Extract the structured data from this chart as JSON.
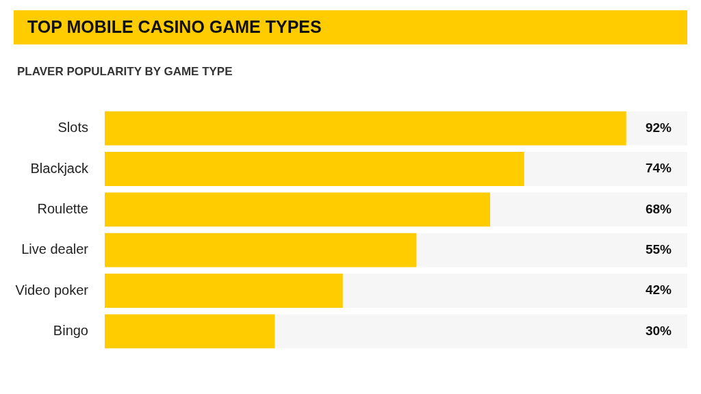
{
  "chart_data": {
    "type": "bar",
    "orientation": "horizontal",
    "title": "TOP MOBILE CASINO GAME TYPES",
    "subtitle": "PLAVER POPULARITY BY GAME TYPE",
    "categories": [
      "Slots",
      "Blackjack",
      "Roulette",
      "Live dealer",
      "Video poker",
      "Bingo"
    ],
    "values": [
      92,
      74,
      68,
      55,
      42,
      30
    ],
    "color": "#ffcc00",
    "value_labels": [
      "92%",
      "74%",
      "68%",
      "55%",
      "42%",
      "30%"
    ],
    "tick_labels": "y"
  }
}
